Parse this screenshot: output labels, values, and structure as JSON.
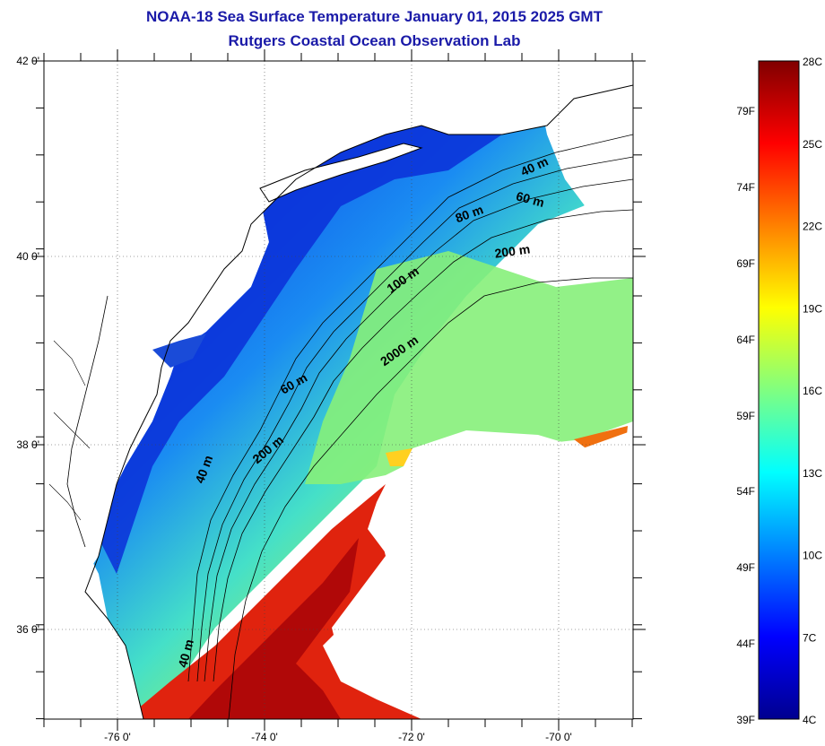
{
  "title": "NOAA-18 Sea Surface Temperature January 01, 2015 2025 GMT",
  "subtitle": "Rutgers Coastal Ocean Observation Lab",
  "map": {
    "lat_labels": [
      "42 0'",
      "40 0'",
      "38 0'",
      "36 0'"
    ],
    "lon_labels": [
      "-76 0'",
      "-74 0'",
      "-72 0'",
      "-70 0'"
    ],
    "contours": [
      {
        "label": "40 m",
        "depth_m": 40
      },
      {
        "label": "60 m",
        "depth_m": 60
      },
      {
        "label": "80 m",
        "depth_m": 80
      },
      {
        "label": "200 m",
        "depth_m": 200
      },
      {
        "label": "100 m",
        "depth_m": 100
      },
      {
        "label": "2000 m",
        "depth_m": 2000
      },
      {
        "label": "60 m",
        "depth_m": 60
      },
      {
        "label": "200 m",
        "depth_m": 200
      },
      {
        "label": "40 m",
        "depth_m": 40
      },
      {
        "label": "40 m",
        "depth_m": 40
      }
    ],
    "land_color": "#ffffff",
    "coastline_color": "#000000"
  },
  "colorbar": {
    "fahrenheit_labels": [
      "79F",
      "74F",
      "69F",
      "64F",
      "59F",
      "54F",
      "49F",
      "44F",
      "39F"
    ],
    "celsius_labels": [
      "28C",
      "25C",
      "22C",
      "19C",
      "16C",
      "13C",
      "10C",
      "7C",
      "4C"
    ],
    "range_celsius": [
      4,
      28
    ],
    "stops": [
      "#00008f",
      "#0000ff",
      "#0080ff",
      "#00ffff",
      "#80ff80",
      "#ffff00",
      "#ff8000",
      "#ff0000",
      "#800000"
    ]
  }
}
